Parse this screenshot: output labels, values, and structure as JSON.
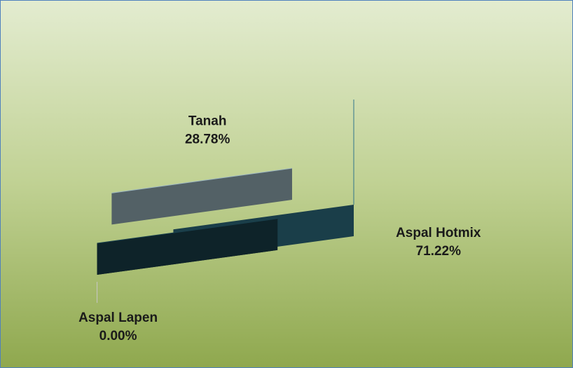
{
  "chart_data": {
    "type": "pie",
    "categories": [
      "Aspal Hotmix",
      "Aspal Lapen",
      "Tanah"
    ],
    "values": [
      71.22,
      0.0,
      28.78
    ],
    "value_labels": [
      "71.22%",
      "0.00%",
      "28.78%"
    ],
    "colors": [
      "#3a8aa3",
      "#1f4d5c",
      "#b8d7e3"
    ],
    "start_angle": 0,
    "clockwise": true
  }
}
